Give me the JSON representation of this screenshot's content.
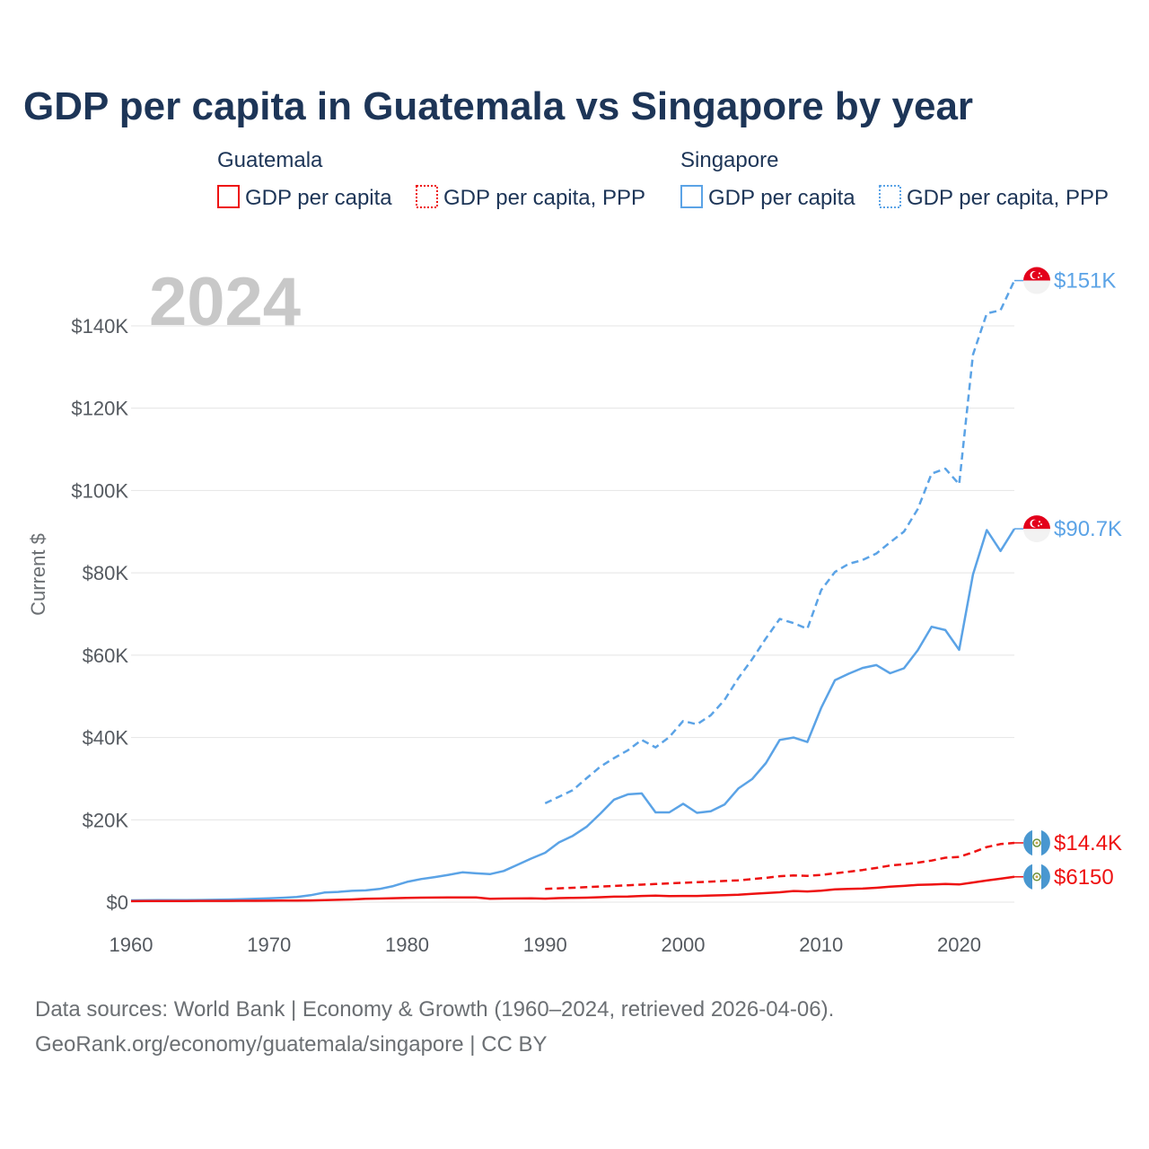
{
  "title": "GDP per capita in Guatemala vs Singapore by year",
  "year_watermark": "2024",
  "colors": {
    "guatemala": "#ee1111",
    "singapore": "#5ba3e6",
    "title": "#1d3557",
    "grid": "#e4e4e4",
    "watermark": "#c8c8c8"
  },
  "legend": {
    "guatemala_title": "Guatemala",
    "singapore_title": "Singapore",
    "gt_gdp": "GDP per capita",
    "gt_ppp": "GDP per capita, PPP",
    "sg_gdp": "GDP per capita",
    "sg_ppp": "GDP per capita, PPP"
  },
  "end_labels": {
    "sg_ppp": "$151K",
    "sg_gdp": "$90.7K",
    "gt_ppp": "$14.4K",
    "gt_gdp": "$6150",
    "sg_flag_icon": "singapore-flag-icon",
    "gt_flag_icon": "guatemala-flag-icon"
  },
  "source": {
    "line1": "Data sources: World Bank | Economy & Growth (1960–2024, retrieved 2026-04-06).",
    "line2": "GeoRank.org/economy/guatemala/singapore | CC BY"
  },
  "chart_data": {
    "type": "line",
    "title": "GDP per capita in Guatemala vs Singapore by year",
    "xlabel": "",
    "ylabel": "Current $",
    "xlim": [
      1960,
      2024
    ],
    "ylim": [
      0,
      150000
    ],
    "xticks": [
      1960,
      1970,
      1980,
      1990,
      2000,
      2010,
      2020
    ],
    "xtick_labels": [
      "1960",
      "1970",
      "1980",
      "1990",
      "2000",
      "2010",
      "2020"
    ],
    "yticks": [
      0,
      20000,
      40000,
      60000,
      80000,
      100000,
      120000,
      140000
    ],
    "ytick_labels": [
      "$0",
      "$20K",
      "$40K",
      "$60K",
      "$80K",
      "$100K",
      "$120K",
      "$140K"
    ],
    "grid": true,
    "series": [
      {
        "name": "Singapore GDP per capita",
        "country": "Singapore",
        "style": "solid",
        "x": [
          1960,
          1961,
          1962,
          1963,
          1964,
          1965,
          1966,
          1967,
          1968,
          1969,
          1970,
          1971,
          1972,
          1973,
          1974,
          1975,
          1976,
          1977,
          1978,
          1979,
          1980,
          1981,
          1982,
          1983,
          1984,
          1985,
          1986,
          1987,
          1988,
          1989,
          1990,
          1991,
          1992,
          1993,
          1994,
          1995,
          1996,
          1997,
          1998,
          1999,
          2000,
          2001,
          2002,
          2003,
          2004,
          2005,
          2006,
          2007,
          2008,
          2009,
          2010,
          2011,
          2012,
          2013,
          2014,
          2015,
          2016,
          2017,
          2018,
          2019,
          2020,
          2021,
          2022,
          2023,
          2024
        ],
        "values": [
          428,
          449,
          472,
          511,
          485,
          516,
          567,
          626,
          709,
          812,
          926,
          1070,
          1260,
          1690,
          2340,
          2490,
          2750,
          2850,
          3200,
          3900,
          4930,
          5600,
          6080,
          6630,
          7230,
          6990,
          6800,
          7560,
          9070,
          10600,
          12000,
          14500,
          16100,
          18300,
          21500,
          24900,
          26200,
          26400,
          21800,
          21800,
          23900,
          21700,
          22100,
          23700,
          27600,
          29900,
          33800,
          39400,
          40000,
          38900,
          47200,
          53900,
          55500,
          56900,
          57600,
          55600,
          56800,
          61200,
          66900,
          66100,
          61300,
          79600,
          90400,
          85300,
          90700
        ]
      },
      {
        "name": "Singapore GDP per capita, PPP",
        "country": "Singapore",
        "style": "dashed",
        "x": [
          1990,
          1991,
          1992,
          1993,
          1994,
          1995,
          1996,
          1997,
          1998,
          1999,
          2000,
          2001,
          2002,
          2003,
          2004,
          2005,
          2006,
          2007,
          2008,
          2009,
          2010,
          2011,
          2012,
          2013,
          2014,
          2015,
          2016,
          2017,
          2018,
          2019,
          2020,
          2021,
          2022,
          2023,
          2024
        ],
        "values": [
          24000,
          25600,
          27200,
          30100,
          32900,
          35000,
          36900,
          39400,
          37600,
          40100,
          44000,
          43200,
          45400,
          49100,
          54400,
          59000,
          64100,
          68800,
          67800,
          66400,
          75800,
          80200,
          82200,
          83100,
          84700,
          87400,
          90000,
          95500,
          104100,
          105300,
          101500,
          133000,
          143000,
          143800,
          151000
        ]
      },
      {
        "name": "Guatemala GDP per capita",
        "country": "Guatemala",
        "style": "solid",
        "x": [
          1960,
          1961,
          1962,
          1963,
          1964,
          1965,
          1966,
          1967,
          1968,
          1969,
          1970,
          1971,
          1972,
          1973,
          1974,
          1975,
          1976,
          1977,
          1978,
          1979,
          1980,
          1981,
          1982,
          1983,
          1984,
          1985,
          1986,
          1987,
          1988,
          1989,
          1990,
          1991,
          1992,
          1993,
          1994,
          1995,
          1996,
          1997,
          1998,
          1999,
          2000,
          2001,
          2002,
          2003,
          2004,
          2005,
          2006,
          2007,
          2008,
          2009,
          2010,
          2011,
          2012,
          2013,
          2014,
          2015,
          2016,
          2017,
          2018,
          2019,
          2020,
          2021,
          2022,
          2023,
          2024
        ],
        "values": [
          250,
          255,
          265,
          275,
          285,
          295,
          300,
          310,
          320,
          330,
          350,
          360,
          375,
          420,
          500,
          560,
          660,
          800,
          880,
          960,
          1040,
          1100,
          1110,
          1130,
          1160,
          1160,
          830,
          880,
          900,
          920,
          840,
          980,
          1040,
          1090,
          1200,
          1320,
          1380,
          1500,
          1570,
          1480,
          1510,
          1500,
          1620,
          1700,
          1800,
          2000,
          2200,
          2400,
          2700,
          2600,
          2800,
          3100,
          3200,
          3300,
          3500,
          3750,
          3950,
          4200,
          4270,
          4400,
          4300,
          4780,
          5250,
          5700,
          6150
        ]
      },
      {
        "name": "Guatemala GDP per capita, PPP",
        "country": "Guatemala",
        "style": "dashed",
        "x": [
          1990,
          1991,
          1992,
          1993,
          1994,
          1995,
          1996,
          1997,
          1998,
          1999,
          2000,
          2001,
          2002,
          2003,
          2004,
          2005,
          2006,
          2007,
          2008,
          2009,
          2010,
          2011,
          2012,
          2013,
          2014,
          2015,
          2016,
          2017,
          2018,
          2019,
          2020,
          2021,
          2022,
          2023,
          2024
        ],
        "values": [
          3200,
          3350,
          3500,
          3650,
          3800,
          3950,
          4100,
          4250,
          4400,
          4550,
          4700,
          4850,
          5000,
          5150,
          5300,
          5600,
          5900,
          6300,
          6500,
          6400,
          6600,
          7000,
          7400,
          7800,
          8300,
          8900,
          9200,
          9600,
          10100,
          10800,
          11000,
          12100,
          13400,
          14100,
          14400
        ]
      }
    ]
  }
}
